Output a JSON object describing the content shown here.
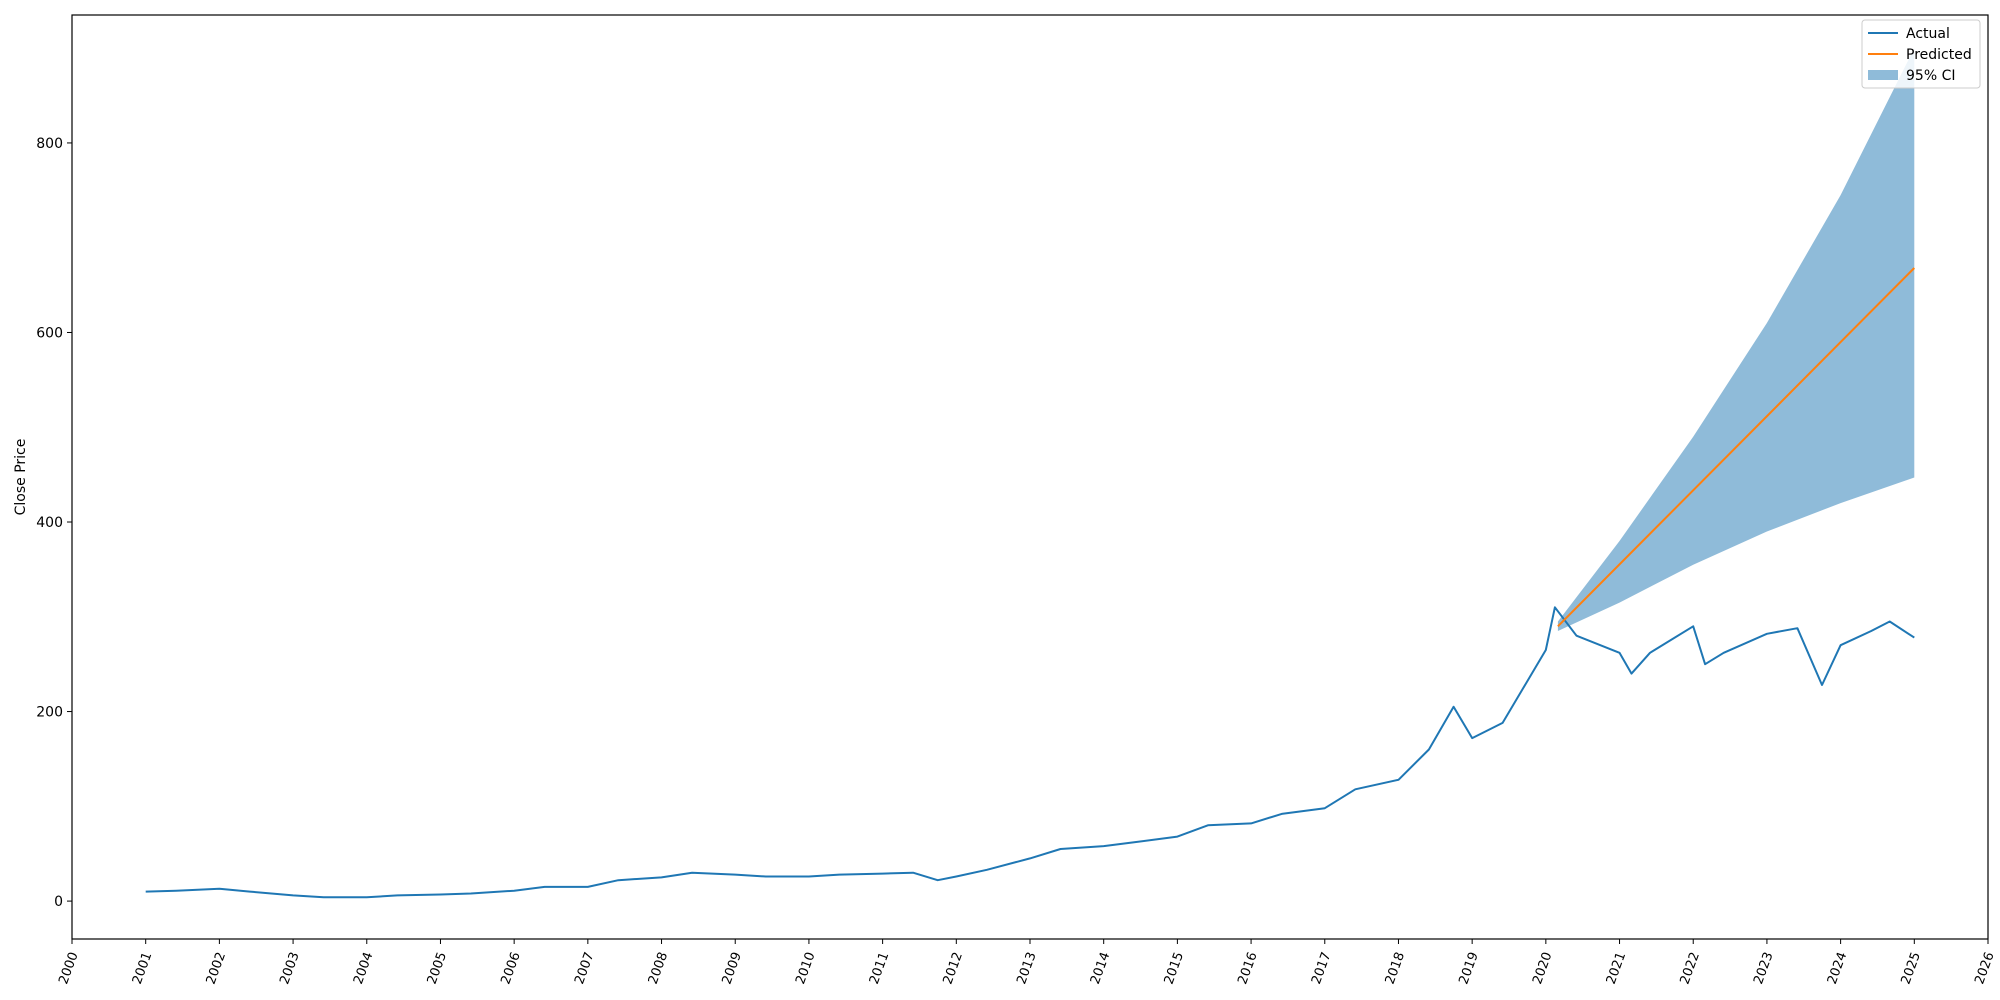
{
  "chart_data": {
    "type": "line",
    "title": "",
    "xlabel": "",
    "ylabel": "Close Price",
    "xlim": [
      "2000-01-01",
      "2026-01-01"
    ],
    "ylim": [
      -40,
      935
    ],
    "x_ticks": [
      "2000",
      "2001",
      "2002",
      "2003",
      "2004",
      "2005",
      "2006",
      "2007",
      "2008",
      "2009",
      "2010",
      "2011",
      "2012",
      "2013",
      "2014",
      "2015",
      "2016",
      "2017",
      "2018",
      "2019",
      "2020",
      "2021",
      "2022",
      "2023",
      "2024",
      "2025",
      "2026"
    ],
    "y_ticks": [
      0,
      200,
      400,
      600,
      800
    ],
    "grid": false,
    "legend": {
      "placement": "top-right",
      "entries": [
        {
          "label": "Actual",
          "color": "#1f77b4",
          "kind": "line"
        },
        {
          "label": "Predicted",
          "color": "#ff7f0e",
          "kind": "line"
        },
        {
          "label": "95% CI",
          "color": "#8fbbd9",
          "kind": "patch"
        }
      ]
    },
    "series": [
      {
        "name": "Actual",
        "color": "#1f77b4",
        "points": [
          [
            "2001-01-01",
            10
          ],
          [
            "2001-06-01",
            11
          ],
          [
            "2002-01-01",
            13
          ],
          [
            "2002-06-01",
            10
          ],
          [
            "2003-01-01",
            6
          ],
          [
            "2003-06-01",
            4
          ],
          [
            "2004-01-01",
            4
          ],
          [
            "2004-06-01",
            6
          ],
          [
            "2005-01-01",
            7
          ],
          [
            "2005-06-01",
            8
          ],
          [
            "2006-01-01",
            11
          ],
          [
            "2006-06-01",
            15
          ],
          [
            "2007-01-01",
            15
          ],
          [
            "2007-06-01",
            22
          ],
          [
            "2008-01-01",
            25
          ],
          [
            "2008-06-01",
            30
          ],
          [
            "2009-01-01",
            28
          ],
          [
            "2009-06-01",
            26
          ],
          [
            "2010-01-01",
            26
          ],
          [
            "2010-06-01",
            28
          ],
          [
            "2011-01-01",
            29
          ],
          [
            "2011-06-01",
            30
          ],
          [
            "2011-10-01",
            22
          ],
          [
            "2012-01-01",
            26
          ],
          [
            "2012-06-01",
            33
          ],
          [
            "2013-01-01",
            45
          ],
          [
            "2013-06-01",
            55
          ],
          [
            "2014-01-01",
            58
          ],
          [
            "2014-06-01",
            62
          ],
          [
            "2015-01-01",
            68
          ],
          [
            "2015-06-01",
            80
          ],
          [
            "2016-01-01",
            82
          ],
          [
            "2016-06-01",
            92
          ],
          [
            "2017-01-01",
            98
          ],
          [
            "2017-06-01",
            118
          ],
          [
            "2018-01-01",
            128
          ],
          [
            "2018-06-01",
            160
          ],
          [
            "2018-10-01",
            205
          ],
          [
            "2019-01-01",
            172
          ],
          [
            "2019-06-01",
            188
          ],
          [
            "2020-01-01",
            265
          ],
          [
            "2020-02-15",
            310
          ],
          [
            "2020-06-01",
            280
          ],
          [
            "2021-01-01",
            262
          ],
          [
            "2021-03-01",
            240
          ],
          [
            "2021-06-01",
            262
          ],
          [
            "2022-01-01",
            290
          ],
          [
            "2022-03-01",
            250
          ],
          [
            "2022-06-01",
            262
          ],
          [
            "2023-01-01",
            282
          ],
          [
            "2023-06-01",
            288
          ],
          [
            "2023-10-01",
            228
          ],
          [
            "2024-01-01",
            270
          ],
          [
            "2024-06-01",
            285
          ],
          [
            "2024-09-01",
            295
          ],
          [
            "2025-01-01",
            278
          ]
        ]
      },
      {
        "name": "Predicted",
        "color": "#ff7f0e",
        "points": [
          [
            "2020-03-01",
            290
          ],
          [
            "2025-01-01",
            668
          ]
        ]
      }
    ],
    "confidence_band": {
      "name": "95% CI",
      "color": "#8fbbd9",
      "upper": [
        [
          "2020-03-01",
          295
        ],
        [
          "2021-01-01",
          380
        ],
        [
          "2022-01-01",
          490
        ],
        [
          "2023-01-01",
          610
        ],
        [
          "2024-01-01",
          745
        ],
        [
          "2025-01-01",
          900
        ]
      ],
      "lower": [
        [
          "2020-03-01",
          285
        ],
        [
          "2021-01-01",
          315
        ],
        [
          "2022-01-01",
          355
        ],
        [
          "2023-01-01",
          390
        ],
        [
          "2024-01-01",
          420
        ],
        [
          "2025-01-01",
          447
        ]
      ]
    }
  }
}
